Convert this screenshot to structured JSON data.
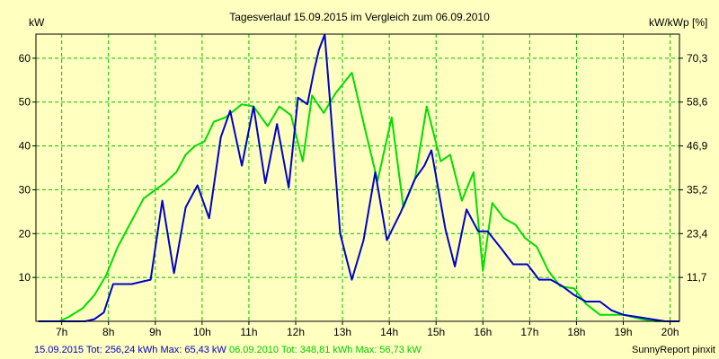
{
  "chart_data": {
    "type": "line",
    "title": "Tagesverlauf 15.09.2015 im Vergleich zum 06.09.2010",
    "ylabel_left": "kW",
    "ylabel_right": "kW/kWp [%]",
    "xlabel": "",
    "x_ticks": [
      "7h",
      "8h",
      "9h",
      "10h",
      "11h",
      "12h",
      "13h",
      "14h",
      "15h",
      "16h",
      "17h",
      "18h",
      "19h",
      "20h"
    ],
    "y_ticks_left": [
      "10",
      "20",
      "30",
      "40",
      "50",
      "60"
    ],
    "y_ticks_right": [
      "11,7",
      "23,4",
      "35,2",
      "46,9",
      "58,6",
      "70,3"
    ],
    "xlim": [
      6.45,
      20.2
    ],
    "ylim": [
      0,
      65.5
    ],
    "grid": true,
    "legend": {
      "blue": "15.09.2015 Tot: 256,24 kWh Max: 65,43 kW",
      "green": "06.09.2010 Tot: 348,81 kWh Max: 56,73 kW"
    },
    "footer": "SunnyReport pinxit",
    "series": [
      {
        "name": "15.09.2015",
        "color": "#0000cc",
        "points": [
          [
            6.5,
            0
          ],
          [
            7,
            0
          ],
          [
            7.5,
            0
          ],
          [
            7.7,
            0.5
          ],
          [
            7.9,
            2
          ],
          [
            8.1,
            8.5
          ],
          [
            8.5,
            8.5
          ],
          [
            8.7,
            9
          ],
          [
            8.9,
            9.5
          ],
          [
            9.15,
            27.5
          ],
          [
            9.4,
            11
          ],
          [
            9.65,
            26
          ],
          [
            9.9,
            31
          ],
          [
            10.15,
            23.5
          ],
          [
            10.4,
            42
          ],
          [
            10.6,
            48
          ],
          [
            10.85,
            35.5
          ],
          [
            11.1,
            49
          ],
          [
            11.35,
            31.5
          ],
          [
            11.6,
            45
          ],
          [
            11.85,
            30.5
          ],
          [
            12.05,
            51
          ],
          [
            12.25,
            49.5
          ],
          [
            12.4,
            57.5
          ],
          [
            12.5,
            62
          ],
          [
            12.62,
            65.4
          ],
          [
            12.72,
            52
          ],
          [
            12.95,
            20
          ],
          [
            13.2,
            9.5
          ],
          [
            13.45,
            18.5
          ],
          [
            13.7,
            34
          ],
          [
            13.95,
            18.5
          ],
          [
            14.25,
            25
          ],
          [
            14.55,
            32.5
          ],
          [
            14.75,
            35.5
          ],
          [
            14.9,
            39
          ],
          [
            15.2,
            21
          ],
          [
            15.4,
            12.5
          ],
          [
            15.65,
            25.5
          ],
          [
            15.9,
            20.5
          ],
          [
            16.1,
            20.5
          ],
          [
            16.4,
            16.5
          ],
          [
            16.65,
            13
          ],
          [
            16.95,
            13
          ],
          [
            17.2,
            9.5
          ],
          [
            17.45,
            9.5
          ],
          [
            17.7,
            8
          ],
          [
            17.95,
            6
          ],
          [
            18.2,
            4.5
          ],
          [
            18.5,
            4.5
          ],
          [
            18.75,
            2.5
          ],
          [
            19,
            1.5
          ],
          [
            19.3,
            1
          ],
          [
            19.6,
            0.5
          ],
          [
            19.9,
            0
          ],
          [
            20.2,
            0
          ]
        ]
      },
      {
        "name": "06.09.2010",
        "color": "#00dd00",
        "points": [
          [
            6.5,
            0
          ],
          [
            6.95,
            0
          ],
          [
            7.15,
            1
          ],
          [
            7.45,
            3
          ],
          [
            7.7,
            6
          ],
          [
            7.95,
            10.5
          ],
          [
            8.2,
            17
          ],
          [
            8.45,
            22
          ],
          [
            8.75,
            28
          ],
          [
            9.0,
            30
          ],
          [
            9.2,
            31.5
          ],
          [
            9.45,
            34
          ],
          [
            9.65,
            38
          ],
          [
            9.85,
            40
          ],
          [
            10.05,
            41
          ],
          [
            10.25,
            45.5
          ],
          [
            10.5,
            46.5
          ],
          [
            10.85,
            49.5
          ],
          [
            11.1,
            49
          ],
          [
            11.4,
            44.5
          ],
          [
            11.65,
            49
          ],
          [
            11.9,
            47
          ],
          [
            12.15,
            36.5
          ],
          [
            12.35,
            51.5
          ],
          [
            12.6,
            47.5
          ],
          [
            12.85,
            52
          ],
          [
            13.2,
            56.7
          ],
          [
            13.5,
            43
          ],
          [
            13.75,
            32
          ],
          [
            14.05,
            46.5
          ],
          [
            14.3,
            26
          ],
          [
            14.55,
            32.5
          ],
          [
            14.8,
            49
          ],
          [
            15.1,
            36.5
          ],
          [
            15.3,
            38
          ],
          [
            15.55,
            27.5
          ],
          [
            15.8,
            34
          ],
          [
            16.0,
            11.5
          ],
          [
            16.2,
            27
          ],
          [
            16.45,
            23.5
          ],
          [
            16.7,
            22
          ],
          [
            16.9,
            19
          ],
          [
            17.15,
            17
          ],
          [
            17.4,
            11.5
          ],
          [
            17.65,
            8
          ],
          [
            17.95,
            7.5
          ],
          [
            18.2,
            4
          ],
          [
            18.5,
            1.5
          ],
          [
            19,
            1.5
          ],
          [
            19.4,
            0.5
          ],
          [
            19.7,
            0
          ],
          [
            20.2,
            0
          ]
        ]
      }
    ]
  }
}
